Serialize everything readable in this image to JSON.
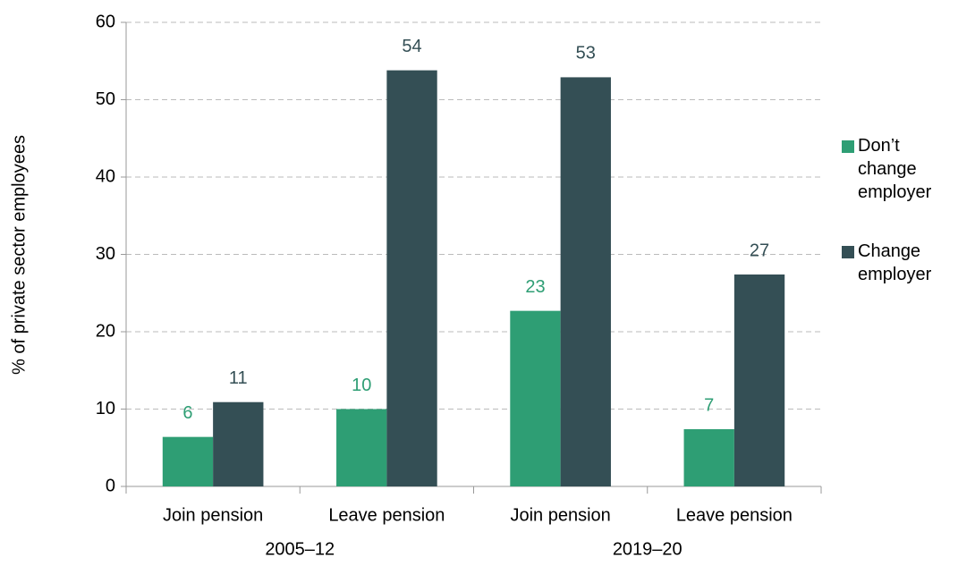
{
  "chart_data": {
    "type": "bar",
    "y_label": "% of private sector employees",
    "categories": [
      "Join pension",
      "Leave pension",
      "Join pension",
      "Leave pension"
    ],
    "category_groups": [
      "2005–12",
      "2019–20"
    ],
    "series": [
      {
        "name": "Don’t change employer",
        "color": "#2e9e74",
        "values": [
          6.4,
          10.0,
          22.7,
          7.4
        ],
        "value_labels": [
          "6",
          "10",
          "23",
          "7"
        ]
      },
      {
        "name": "Change employer",
        "color": "#344f55",
        "values": [
          10.9,
          53.8,
          52.9,
          27.4
        ],
        "value_labels": [
          "11",
          "54",
          "53",
          "27"
        ]
      }
    ],
    "ylim": [
      0,
      60
    ],
    "yticks": [
      0,
      10,
      20,
      30,
      40,
      50,
      60
    ],
    "grid": true,
    "legend": "right"
  }
}
